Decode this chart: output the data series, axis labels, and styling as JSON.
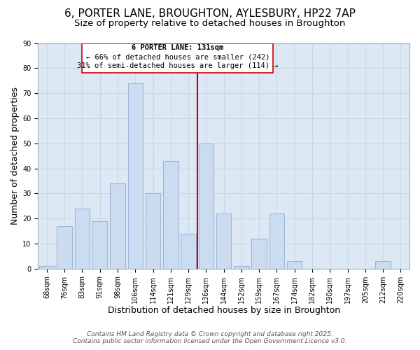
{
  "title1": "6, PORTER LANE, BROUGHTON, AYLESBURY, HP22 7AP",
  "title2": "Size of property relative to detached houses in Broughton",
  "xlabel": "Distribution of detached houses by size in Broughton",
  "ylabel": "Number of detached properties",
  "categories": [
    "68sqm",
    "76sqm",
    "83sqm",
    "91sqm",
    "98sqm",
    "106sqm",
    "114sqm",
    "121sqm",
    "129sqm",
    "136sqm",
    "144sqm",
    "152sqm",
    "159sqm",
    "167sqm",
    "174sqm",
    "182sqm",
    "190sqm",
    "197sqm",
    "205sqm",
    "212sqm",
    "220sqm"
  ],
  "values": [
    1,
    17,
    24,
    19,
    34,
    74,
    30,
    43,
    14,
    50,
    22,
    1,
    12,
    22,
    3,
    0,
    0,
    0,
    0,
    3,
    0
  ],
  "bar_color": "#ccdcf0",
  "bar_edge_color": "#9ab8d8",
  "vline_x": 8.5,
  "vline_color": "#cc0000",
  "annotation_line1": "6 PORTER LANE: 131sqm",
  "annotation_line2": "← 66% of detached houses are smaller (242)",
  "annotation_line3": "31% of semi-detached houses are larger (114) →",
  "ylim": [
    0,
    90
  ],
  "yticks": [
    0,
    10,
    20,
    30,
    40,
    50,
    60,
    70,
    80,
    90
  ],
  "grid_color": "#c8d8e8",
  "background_color": "#ffffff",
  "plot_bg_color": "#dce8f4",
  "footer_line1": "Contains HM Land Registry data © Crown copyright and database right 2025.",
  "footer_line2": "Contains public sector information licensed under the Open Government Licence v3.0.",
  "title_fontsize": 11,
  "subtitle_fontsize": 9.5,
  "label_fontsize": 9,
  "tick_fontsize": 7,
  "footer_fontsize": 6.5
}
